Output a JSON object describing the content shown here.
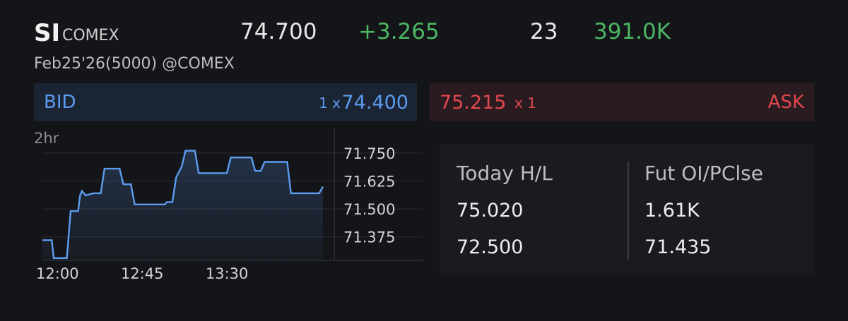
{
  "header": {
    "symbol": "SI",
    "exchange": "COMEX",
    "last": "74.700",
    "change": "+3.265",
    "trades": "23",
    "volume": "391.0K",
    "contract": "Feb25'26(5000) @COMEX"
  },
  "quote": {
    "bid_label": "BID",
    "bid_size": "1 x",
    "bid_price": "74.400",
    "ask_price": "75.215",
    "ask_size": "x 1",
    "ask_label": "ASK"
  },
  "colors": {
    "up": "#4cb562",
    "bid": "#5c9cf0",
    "ask": "#e0484e",
    "line": "#5c9cf0"
  },
  "chart_data": {
    "type": "line",
    "range_label": "2hr",
    "y_ticks": [
      "71.750",
      "71.625",
      "71.500",
      "71.375"
    ],
    "x_ticks": [
      "12:00",
      "12:45",
      "13:30"
    ],
    "ylim": [
      71.27,
      71.86
    ],
    "x_minutes_range": [
      -8,
      147
    ],
    "series": [
      {
        "values": [
          [
            -8,
            71.36
          ],
          [
            -3,
            71.36
          ],
          [
            -2,
            71.28
          ],
          [
            5,
            71.28
          ],
          [
            7,
            71.49
          ],
          [
            11,
            71.49
          ],
          [
            12,
            71.56
          ],
          [
            13,
            71.58
          ],
          [
            15,
            71.56
          ],
          [
            19,
            71.57
          ],
          [
            23,
            71.57
          ],
          [
            25,
            71.68
          ],
          [
            33,
            71.68
          ],
          [
            35,
            71.61
          ],
          [
            39,
            71.61
          ],
          [
            41,
            71.52
          ],
          [
            57,
            71.52
          ],
          [
            58,
            71.53
          ],
          [
            61,
            71.53
          ],
          [
            63,
            71.64
          ],
          [
            66,
            71.69
          ],
          [
            68,
            71.76
          ],
          [
            73,
            71.76
          ],
          [
            75,
            71.66
          ],
          [
            90,
            71.66
          ],
          [
            92,
            71.73
          ],
          [
            103,
            71.73
          ],
          [
            105,
            71.67
          ],
          [
            108,
            71.67
          ],
          [
            110,
            71.71
          ],
          [
            122,
            71.71
          ],
          [
            124,
            71.57
          ],
          [
            139,
            71.57
          ],
          [
            141,
            71.6
          ]
        ]
      }
    ],
    "grid": true
  },
  "stats": {
    "left_header": "Today H/L",
    "high": "75.020",
    "low": "72.500",
    "right_header": "Fut OI/PClse",
    "open_interest": "1.61K",
    "prev_close": "71.435"
  }
}
